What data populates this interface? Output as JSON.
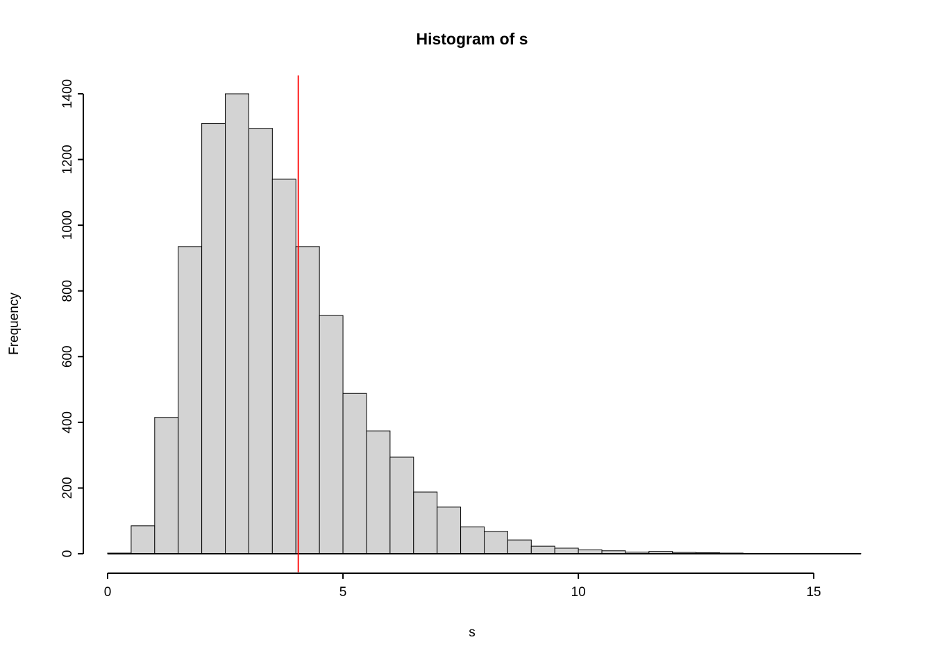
{
  "chart_data": {
    "type": "bar",
    "subtype": "histogram",
    "title": "Histogram of s",
    "xlabel": "s",
    "ylabel": "Frequency",
    "bin_start": 0,
    "bin_width": 0.5,
    "counts": [
      2,
      85,
      415,
      935,
      1310,
      1400,
      1295,
      1140,
      935,
      725,
      488,
      374,
      294,
      188,
      142,
      82,
      68,
      42,
      23,
      17,
      12,
      9,
      5,
      7,
      4,
      3,
      2,
      1,
      1,
      1,
      0,
      1
    ],
    "xlim": [
      0,
      16
    ],
    "ylim": [
      0,
      1400
    ],
    "x_ticks": [
      0,
      5,
      10,
      15
    ],
    "y_ticks": [
      0,
      200,
      400,
      600,
      800,
      1000,
      1200,
      1400
    ],
    "grid": false,
    "vline": {
      "x": 4.05,
      "color": "#FF0000"
    },
    "bar_fill": "#D3D3D3",
    "bar_stroke": "#000000",
    "axis_color": "#000000"
  }
}
